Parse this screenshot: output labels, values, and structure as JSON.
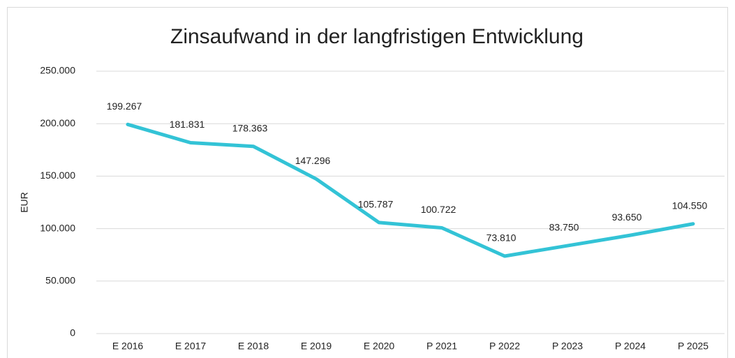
{
  "chart_data": {
    "type": "line",
    "title": "Zinsaufwand in der langfristigen Entwicklung",
    "y_label": "EUR",
    "categories": [
      "E 2016",
      "E 2017",
      "E 2018",
      "E 2019",
      "E 2020",
      "P 2021",
      "P 2022",
      "P 2023",
      "P 2024",
      "P 2025"
    ],
    "values": [
      199267,
      181831,
      178363,
      147296,
      105787,
      100722,
      73810,
      83750,
      93650,
      104550
    ],
    "value_labels": [
      "199.267",
      "181.831",
      "178.363",
      "147.296",
      "105.787",
      "100.722",
      "73.810",
      "83.750",
      "93.650",
      "104.550"
    ],
    "color": "#33c3d6",
    "ylim": [
      0,
      250000
    ],
    "yticks": [
      0,
      {
        "value": 50000,
        "label": "50.000"
      },
      {
        "value": 100000,
        "label": "100.000"
      },
      {
        "value": 150000,
        "label": "150.000"
      },
      {
        "value": 200000,
        "label": "200.000"
      },
      {
        "value": 250000,
        "label": "250.000"
      }
    ],
    "grid": true
  }
}
